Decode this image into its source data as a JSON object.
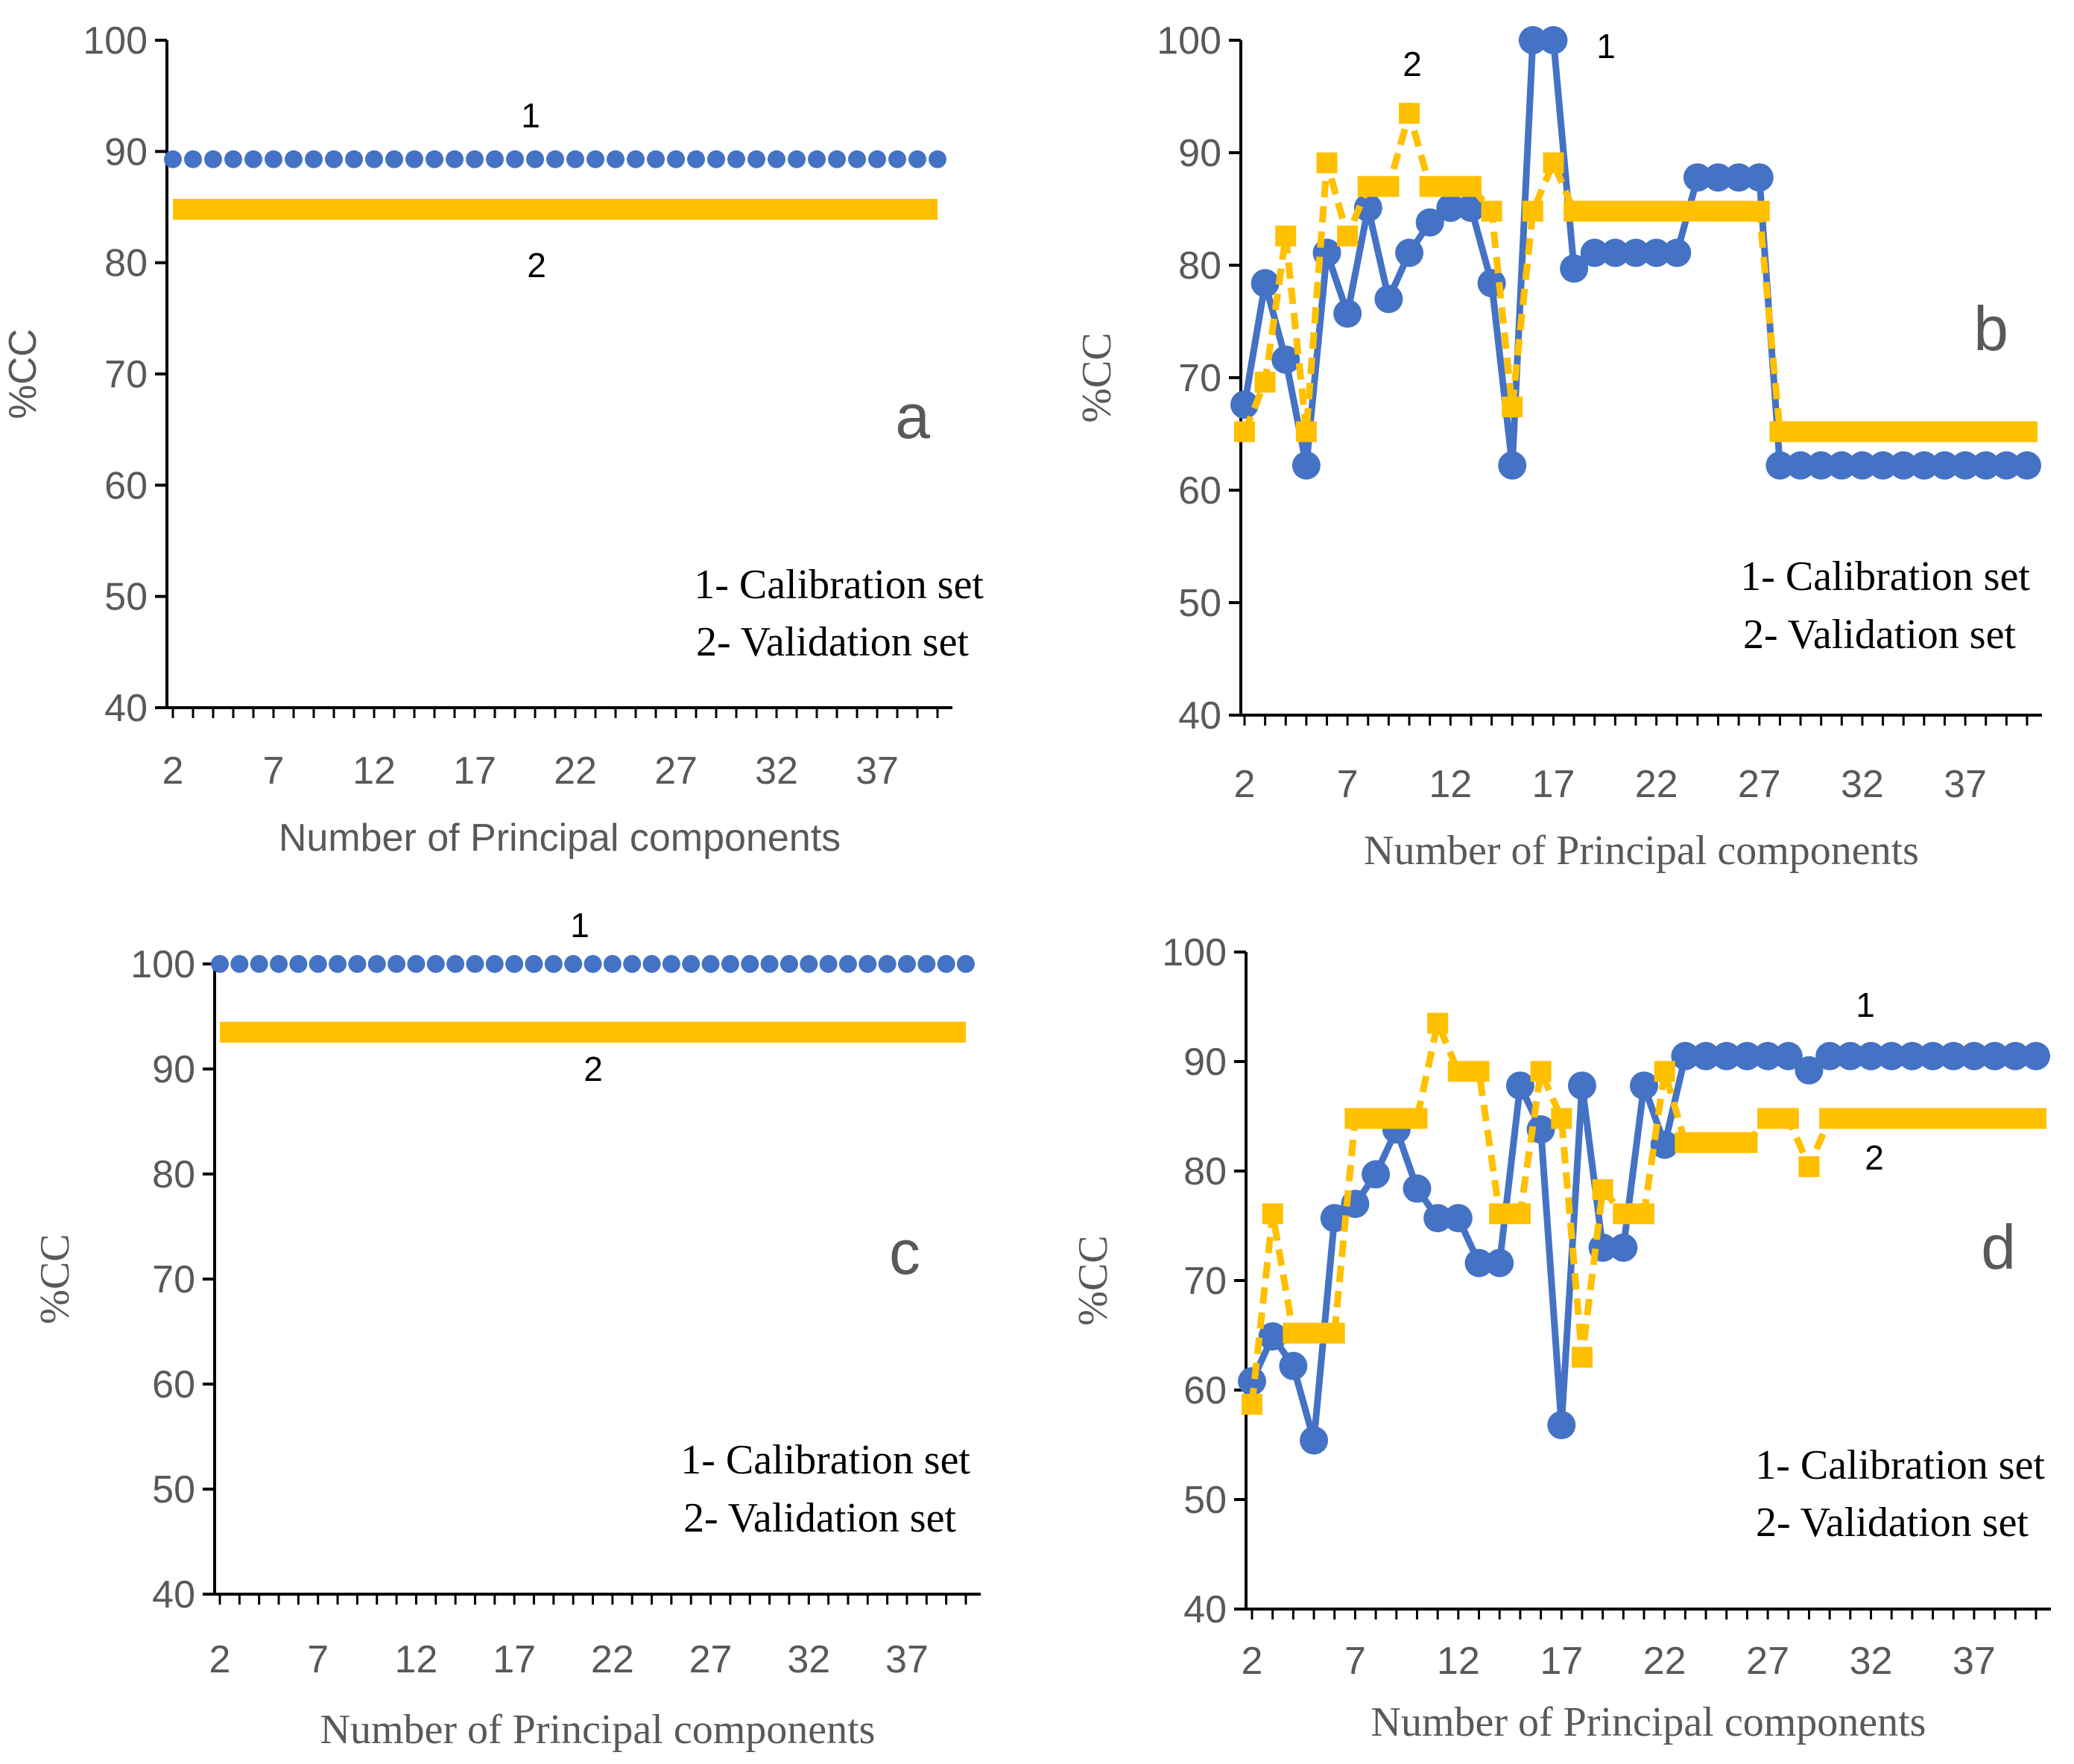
{
  "colors": {
    "calibration": "#4472C4",
    "validation": "#FFC000",
    "axis": "#000000",
    "text": "#595959"
  },
  "chart_data": [
    {
      "panel": "a",
      "type": "line",
      "xlabel": "Number of Principal components",
      "ylabel": "%CC",
      "ylim": [
        40,
        100
      ],
      "yticks": [
        "40",
        "50",
        "60",
        "70",
        "80",
        "90",
        "100"
      ],
      "xticks": [
        "2",
        "7",
        "12",
        "17",
        "22",
        "27",
        "32",
        "37"
      ],
      "legend": [
        "1- Calibration set",
        "2- Validation set"
      ],
      "series": [
        {
          "name": "1",
          "style": "dotted",
          "x_start": 2,
          "x_end": 40,
          "values": [
            89.3,
            89.3,
            89.3,
            89.3,
            89.3,
            89.3,
            89.3,
            89.3,
            89.3,
            89.3,
            89.3,
            89.3,
            89.3,
            89.3,
            89.3,
            89.3,
            89.3,
            89.3,
            89.3,
            89.3,
            89.3,
            89.3,
            89.3,
            89.3,
            89.3,
            89.3,
            89.3,
            89.3,
            89.3,
            89.3,
            89.3,
            89.3,
            89.3,
            89.3,
            89.3,
            89.3,
            89.3,
            89.3,
            89.3
          ]
        },
        {
          "name": "2",
          "style": "solid",
          "x_start": 2,
          "x_end": 40,
          "values": [
            84.8,
            84.8,
            84.8,
            84.8,
            84.8,
            84.8,
            84.8,
            84.8,
            84.8,
            84.8,
            84.8,
            84.8,
            84.8,
            84.8,
            84.8,
            84.8,
            84.8,
            84.8,
            84.8,
            84.8,
            84.8,
            84.8,
            84.8,
            84.8,
            84.8,
            84.8,
            84.8,
            84.8,
            84.8,
            84.8,
            84.8,
            84.8,
            84.8,
            84.8,
            84.8,
            84.8,
            84.8,
            84.8,
            84.8
          ]
        }
      ]
    },
    {
      "panel": "b",
      "type": "line",
      "xlabel": "Number of Principal components",
      "ylabel": "%CC",
      "ylim": [
        40,
        100
      ],
      "yticks": [
        "40",
        "50",
        "60",
        "70",
        "80",
        "90",
        "100"
      ],
      "xticks": [
        "2",
        "7",
        "12",
        "17",
        "22",
        "27",
        "32",
        "37"
      ],
      "legend": [
        "1- Calibration set",
        "2- Validation set"
      ],
      "series": [
        {
          "name": "1",
          "style": "marker-line",
          "x_start": 2,
          "x_end": 40,
          "values": [
            67.6,
            78.4,
            71.6,
            62.2,
            81.1,
            75.7,
            85.1,
            77.0,
            81.1,
            83.8,
            85.1,
            85.1,
            78.4,
            62.2,
            100,
            100,
            79.7,
            81.1,
            81.1,
            81.1,
            81.1,
            81.1,
            87.8,
            87.8,
            87.8,
            87.8,
            62.2,
            62.2,
            62.2,
            62.2,
            62.2,
            62.2,
            62.2,
            62.2,
            62.2,
            62.2,
            62.2,
            62.2,
            62.2
          ]
        },
        {
          "name": "2",
          "style": "dashed",
          "x_start": 2,
          "x_end": 40,
          "values": [
            65.2,
            69.6,
            82.6,
            65.2,
            89.1,
            82.6,
            87.0,
            87.0,
            93.5,
            87.0,
            87.0,
            87.0,
            84.8,
            67.4,
            84.8,
            89.1,
            84.8,
            84.8,
            84.8,
            84.8,
            84.8,
            84.8,
            84.8,
            84.8,
            84.8,
            84.8,
            65.2,
            65.2,
            65.2,
            65.2,
            65.2,
            65.2,
            65.2,
            65.2,
            65.2,
            65.2,
            65.2,
            65.2,
            65.2
          ]
        }
      ]
    },
    {
      "panel": "c",
      "type": "line",
      "xlabel": "Number of Principal components",
      "ylabel": "%CC",
      "ylim": [
        40,
        100
      ],
      "yticks": [
        "40",
        "50",
        "60",
        "70",
        "80",
        "90",
        "100"
      ],
      "xticks": [
        "2",
        "7",
        "12",
        "17",
        "22",
        "27",
        "32",
        "37"
      ],
      "legend": [
        "1- Calibration set",
        "2- Validation set"
      ],
      "series": [
        {
          "name": "1",
          "style": "dotted",
          "x_start": 2,
          "x_end": 40,
          "values": [
            100,
            100,
            100,
            100,
            100,
            100,
            100,
            100,
            100,
            100,
            100,
            100,
            100,
            100,
            100,
            100,
            100,
            100,
            100,
            100,
            100,
            100,
            100,
            100,
            100,
            100,
            100,
            100,
            100,
            100,
            100,
            100,
            100,
            100,
            100,
            100,
            100,
            100,
            100
          ]
        },
        {
          "name": "2",
          "style": "solid",
          "x_start": 2,
          "x_end": 40,
          "values": [
            93.5,
            93.5,
            93.5,
            93.5,
            93.5,
            93.5,
            93.5,
            93.5,
            93.5,
            93.5,
            93.5,
            93.5,
            93.5,
            93.5,
            93.5,
            93.5,
            93.5,
            93.5,
            93.5,
            93.5,
            93.5,
            93.5,
            93.5,
            93.5,
            93.5,
            93.5,
            93.5,
            93.5,
            93.5,
            93.5,
            93.5,
            93.5,
            93.5,
            93.5,
            93.5,
            93.5,
            93.5,
            93.5,
            93.5
          ]
        }
      ]
    },
    {
      "panel": "d",
      "type": "line",
      "xlabel": "Number of Principal components",
      "ylabel": "%CC",
      "ylim": [
        40,
        100
      ],
      "yticks": [
        "40",
        "50",
        "60",
        "70",
        "80",
        "90",
        "100"
      ],
      "xticks": [
        "2",
        "7",
        "12",
        "17",
        "22",
        "27",
        "32",
        "37"
      ],
      "legend": [
        "1- Calibration set",
        "2- Validation set"
      ],
      "series": [
        {
          "name": "1",
          "style": "marker-line",
          "x_start": 2,
          "x_end": 40,
          "values": [
            60.8,
            64.9,
            62.2,
            55.4,
            75.7,
            77.0,
            79.7,
            83.8,
            78.4,
            75.7,
            75.7,
            71.6,
            71.6,
            87.8,
            83.8,
            56.8,
            87.8,
            73.0,
            73.0,
            87.8,
            82.4,
            90.5,
            90.5,
            90.5,
            90.5,
            90.5,
            90.5,
            89.2,
            90.5,
            90.5,
            90.5,
            90.5,
            90.5,
            90.5,
            90.5,
            90.5,
            90.5,
            90.5,
            90.5
          ]
        },
        {
          "name": "2",
          "style": "dashed",
          "x_start": 2,
          "x_end": 40,
          "values": [
            58.7,
            76.1,
            65.2,
            65.2,
            65.2,
            84.8,
            84.8,
            84.8,
            84.8,
            93.5,
            89.1,
            89.1,
            76.1,
            76.1,
            89.1,
            84.8,
            63.0,
            78.3,
            76.1,
            76.1,
            89.1,
            82.6,
            82.6,
            82.6,
            82.6,
            84.8,
            84.8,
            80.4,
            84.8,
            84.8,
            84.8,
            84.8,
            84.8,
            84.8,
            84.8,
            84.8,
            84.8,
            84.8,
            84.8
          ]
        }
      ]
    }
  ]
}
